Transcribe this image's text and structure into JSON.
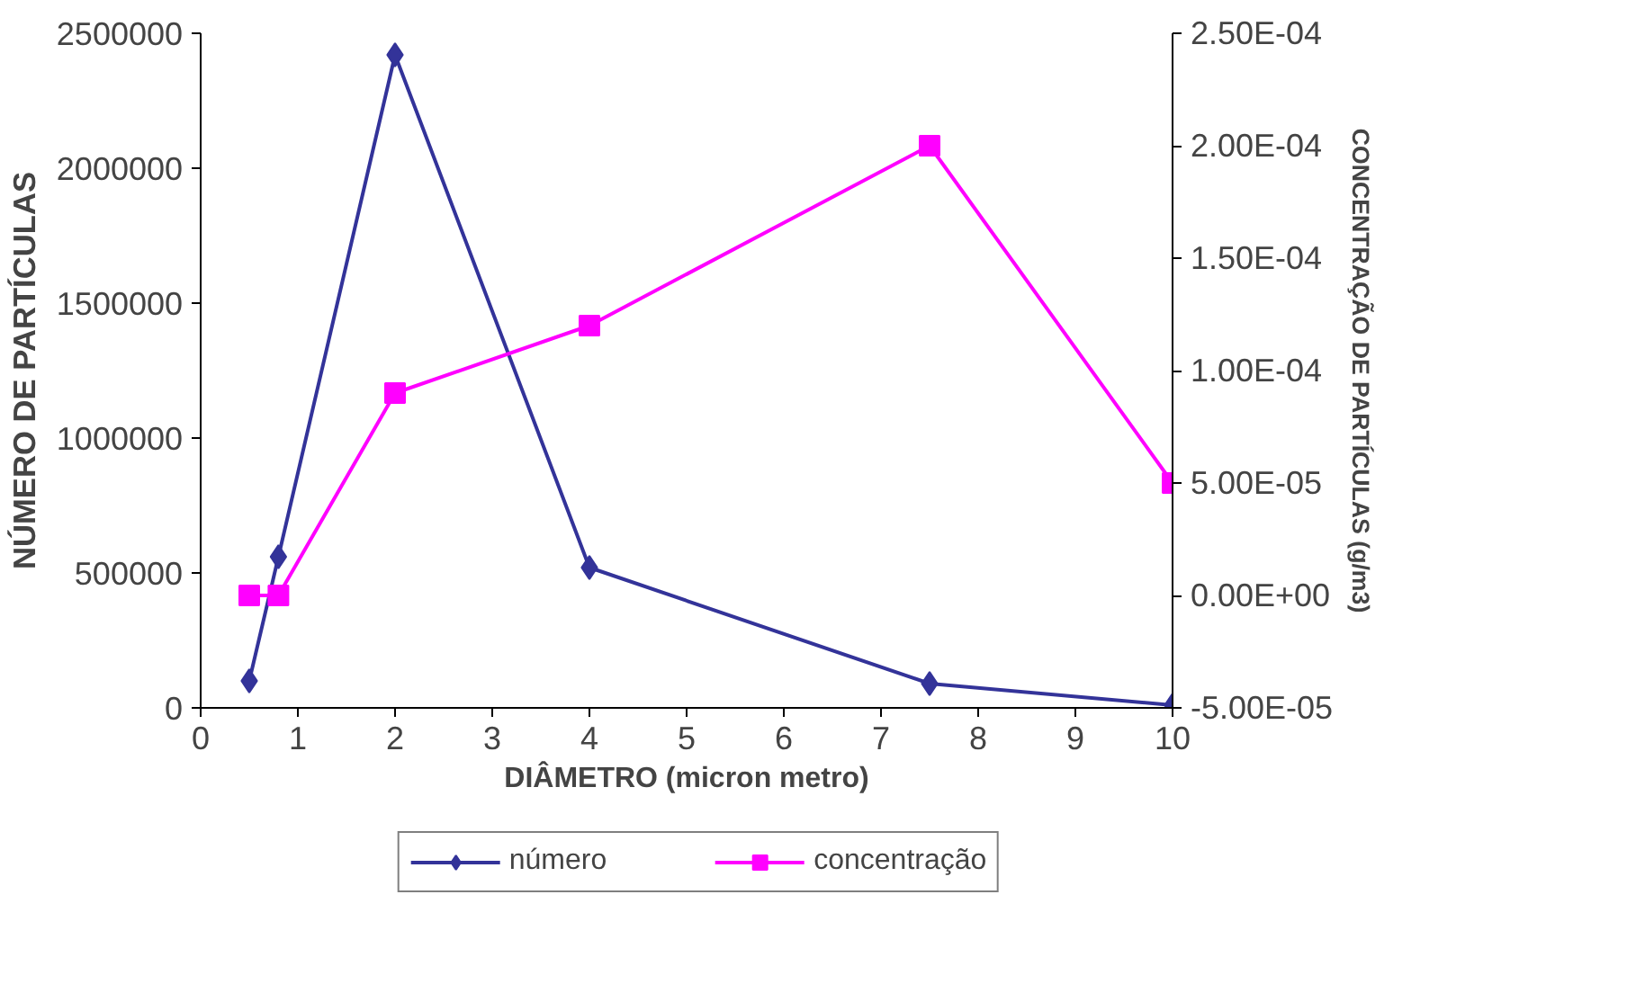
{
  "chart_data": {
    "type": "line",
    "xlabel": "DIÂMETRO (micron metro)",
    "ylabel": "NÚMERO DE PARTÍCULAS",
    "y2label": "CONCENTRAÇÃO DE PARTÍCULAS (g/m3)",
    "series": [
      {
        "name": "número",
        "color": "#333399",
        "marker": "diamond",
        "x": [
          0.5,
          0.8,
          2,
          4,
          7.5,
          10
        ],
        "values": [
          100000,
          560000,
          2420000,
          520000,
          90000,
          10000
        ]
      },
      {
        "name": "concentração",
        "color": "#ff00ff",
        "marker": "square",
        "axis": "y2",
        "x": [
          0.5,
          0.8,
          2,
          4,
          7.5,
          10
        ],
        "values": [
          0,
          0,
          9e-05,
          0.00012,
          0.0002,
          5e-05
        ]
      }
    ],
    "xlim": [
      0,
      10
    ],
    "xticks": [
      0,
      1,
      2,
      3,
      4,
      5,
      6,
      7,
      8,
      9,
      10
    ],
    "ylim": [
      0,
      2500000
    ],
    "yticks": [
      0,
      500000,
      1000000,
      1500000,
      2000000,
      2500000
    ],
    "y2lim": [
      -5e-05,
      0.00025
    ],
    "y2ticks": [
      {
        "value": -5e-05,
        "label": "-5.00E-05"
      },
      {
        "value": 0,
        "label": "0.00E+00"
      },
      {
        "value": 5e-05,
        "label": "5.00E-05"
      },
      {
        "value": 0.0001,
        "label": "1.00E-04"
      },
      {
        "value": 0.00015,
        "label": "1.50E-04"
      },
      {
        "value": 0.0002,
        "label": "2.00E-04"
      },
      {
        "value": 0.00025,
        "label": "2.50E-04"
      }
    ],
    "grid": false,
    "legend": "bottom",
    "line_style": "solid"
  }
}
